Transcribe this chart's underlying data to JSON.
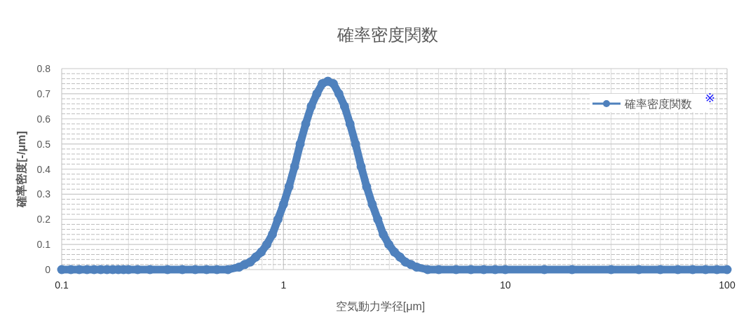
{
  "chart_data": {
    "type": "line",
    "title": "確率密度関数",
    "xlabel": "空気動力学径[μm]",
    "ylabel": "確率密度[-/μm]",
    "log": "x",
    "xlim": [
      0.1,
      100
    ],
    "xticks": [
      0.1,
      1,
      10,
      100
    ],
    "ylim": [
      0,
      0.8
    ],
    "yticks": [
      0,
      0.1,
      0.2,
      0.3,
      0.4,
      0.5,
      0.6,
      0.7,
      0.8
    ],
    "grid": true,
    "legend": "top right",
    "marker": "circle",
    "annotations": [
      "※"
    ],
    "series": [
      {
        "name": "確率密度関数",
        "color": "#4f81bd",
        "x": [
          0.1,
          0.11,
          0.12,
          0.13,
          0.14,
          0.15,
          0.16,
          0.17,
          0.18,
          0.19,
          0.2,
          0.22,
          0.25,
          0.3,
          0.35,
          0.4,
          0.45,
          0.501,
          0.562,
          0.631,
          0.668,
          0.708,
          0.75,
          0.794,
          0.841,
          0.891,
          0.944,
          1.0,
          1.059,
          1.122,
          1.189,
          1.259,
          1.334,
          1.413,
          1.496,
          1.585,
          1.679,
          1.778,
          1.884,
          1.995,
          2.113,
          2.239,
          2.371,
          2.512,
          2.661,
          2.818,
          2.985,
          3.162,
          3.35,
          3.548,
          3.758,
          3.981,
          4.467,
          5.012,
          6,
          7,
          8,
          9,
          10,
          15,
          20,
          30,
          40,
          50,
          60,
          70,
          80,
          90,
          100
        ],
        "values": [
          0,
          0,
          0,
          0,
          0,
          0,
          0,
          0,
          0,
          0,
          0,
          0,
          0,
          0,
          0,
          0,
          0,
          0,
          0,
          0.01,
          0.02,
          0.03,
          0.05,
          0.07,
          0.1,
          0.14,
          0.2,
          0.26,
          0.33,
          0.41,
          0.5,
          0.58,
          0.65,
          0.7,
          0.74,
          0.75,
          0.74,
          0.7,
          0.65,
          0.58,
          0.5,
          0.41,
          0.33,
          0.26,
          0.2,
          0.14,
          0.1,
          0.07,
          0.05,
          0.03,
          0.02,
          0.01,
          0,
          0,
          0,
          0,
          0,
          0,
          0,
          0,
          0,
          0,
          0,
          0,
          0,
          0,
          0,
          0,
          0
        ]
      }
    ]
  }
}
